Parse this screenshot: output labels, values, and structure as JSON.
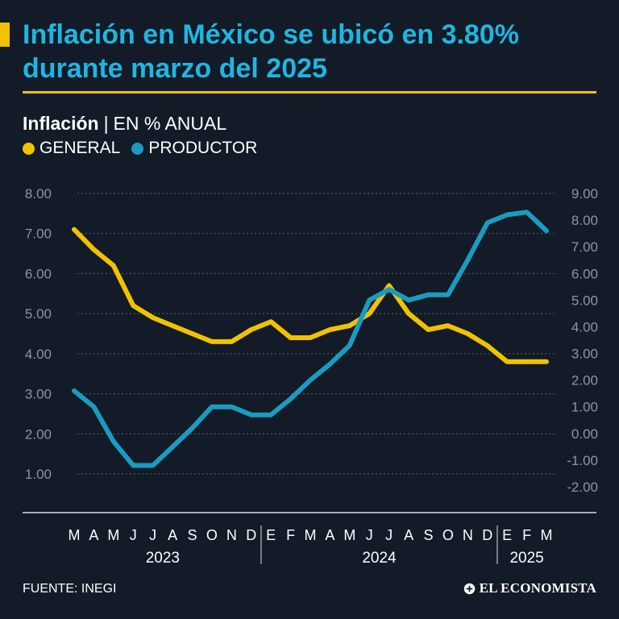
{
  "header": {
    "title": "Inflación en México se ubicó en 3.80% durante marzo del 2025"
  },
  "subtitle": {
    "label": "Inflación",
    "separator": "|",
    "unit": "EN % ANUAL"
  },
  "legend": [
    {
      "label": "GENERAL",
      "color": "#f2c200"
    },
    {
      "label": "PRODUCTOR",
      "color": "#1a9cc0"
    }
  ],
  "footer": {
    "source": "FUENTE: INEGI",
    "logo": "EL ECONOMISTA"
  },
  "chart_data": {
    "type": "line",
    "title": "Inflación",
    "ylabel": "EN % ANUAL",
    "categories": [
      "M",
      "A",
      "M",
      "J",
      "J",
      "A",
      "S",
      "O",
      "N",
      "D",
      "E",
      "F",
      "M",
      "A",
      "M",
      "J",
      "J",
      "A",
      "S",
      "O",
      "N",
      "D",
      "E",
      "F",
      "M"
    ],
    "years": [
      {
        "label": "2023",
        "start": 0,
        "end": 9
      },
      {
        "label": "2024",
        "start": 10,
        "end": 21
      },
      {
        "label": "2025",
        "start": 22,
        "end": 24
      }
    ],
    "y_left": {
      "ticks": [
        "8.00",
        "7.00",
        "6.00",
        "5.00",
        "4.00",
        "3.00",
        "2.00",
        "1.00"
      ],
      "ylim": [
        1,
        8
      ]
    },
    "y_right": {
      "ticks": [
        "9.00",
        "8.00",
        "7.00",
        "6.00",
        "5.00",
        "4.00",
        "3.00",
        "2.00",
        "1.00",
        "0.00",
        "-1.00",
        "-2.00"
      ],
      "ylim": [
        -2,
        9
      ]
    },
    "grid": true,
    "series": [
      {
        "name": "GENERAL",
        "axis": "left",
        "color": "#f2c200",
        "values": [
          7.1,
          6.6,
          6.2,
          5.2,
          4.9,
          4.7,
          4.5,
          4.3,
          4.3,
          4.6,
          4.8,
          4.4,
          4.4,
          4.6,
          4.7,
          5.0,
          5.7,
          5.0,
          4.6,
          4.7,
          4.5,
          4.2,
          3.8,
          3.8,
          3.8
        ]
      },
      {
        "name": "PRODUCTOR",
        "axis": "right",
        "color": "#1a9cc0",
        "values": [
          1.6,
          1.0,
          -0.3,
          -1.2,
          -1.2,
          -0.5,
          0.2,
          1.0,
          1.0,
          0.7,
          0.7,
          1.3,
          2.0,
          2.6,
          3.3,
          5.0,
          5.4,
          5.0,
          5.2,
          5.2,
          6.5,
          7.9,
          8.2,
          8.3,
          7.6
        ]
      }
    ]
  }
}
